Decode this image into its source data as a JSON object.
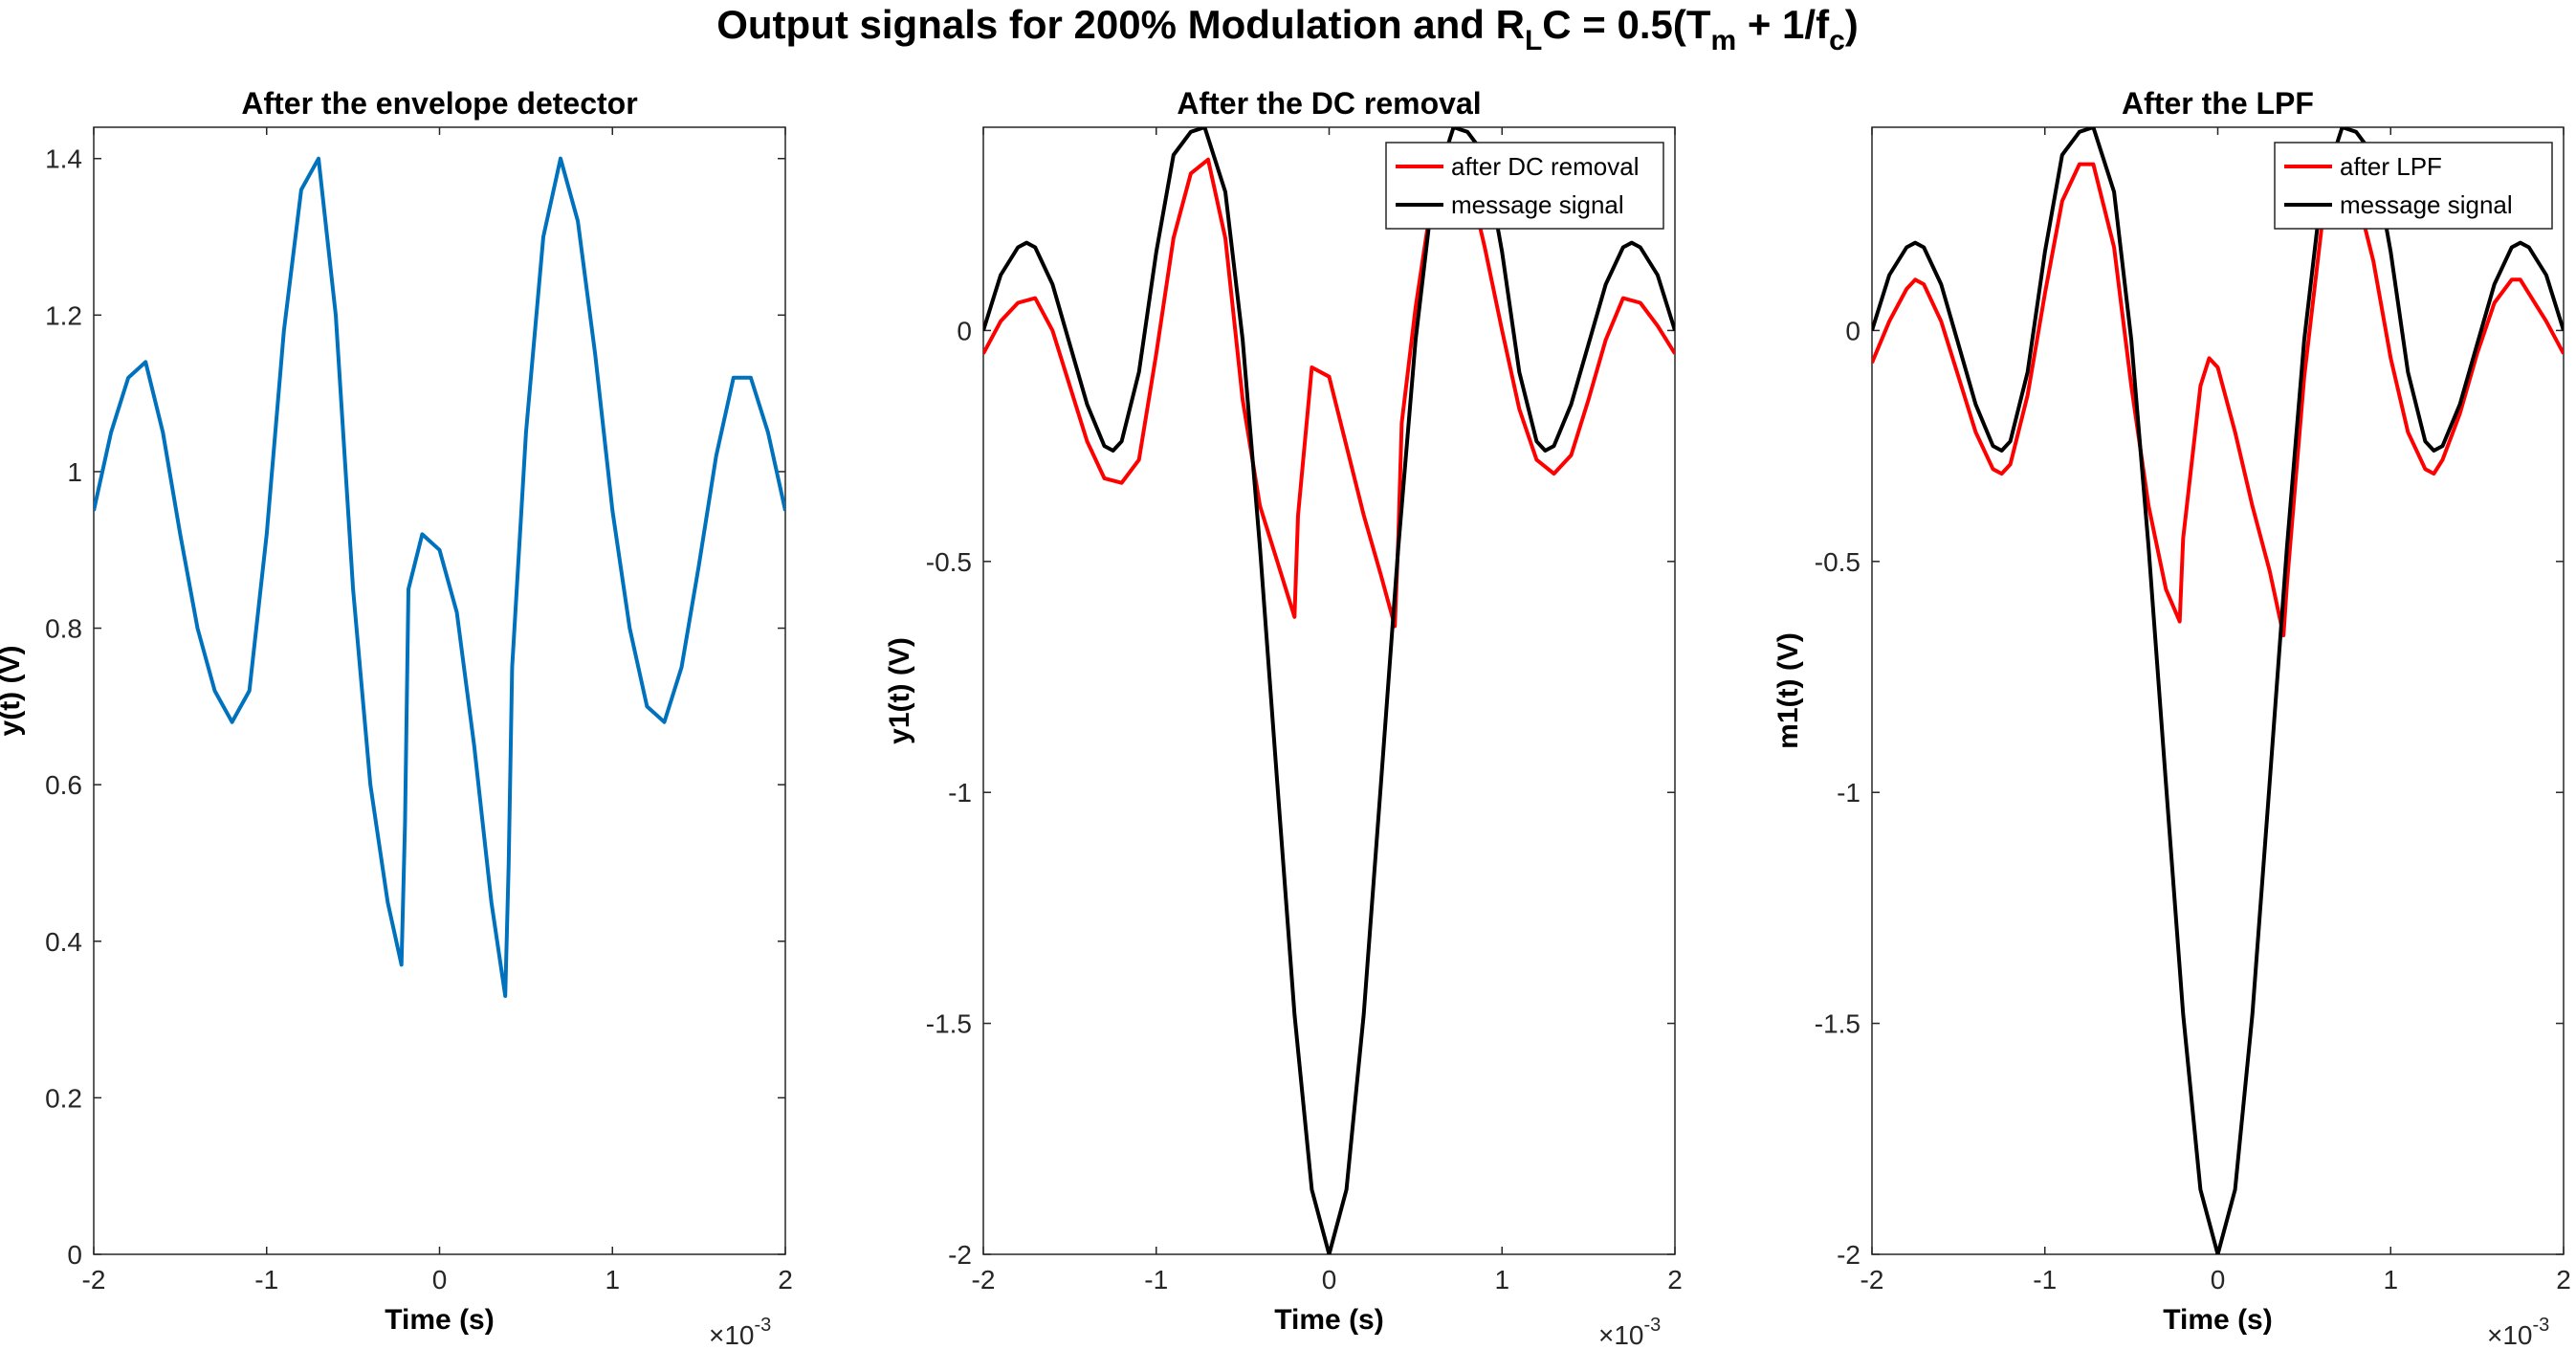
{
  "figure": {
    "title_main": "Output signals for 200% Modulation and R",
    "title_sub_L": "L",
    "title_mid": "C = 0.5(T",
    "title_sub_m": "m",
    "title_mid2": " + 1/f",
    "title_sub_c": "c",
    "title_end": ")"
  },
  "colors": {
    "blue": "#0072BD",
    "red": "#FF0000",
    "black": "#000000"
  },
  "chart_data": [
    {
      "type": "line",
      "title": "After the envelope detector",
      "xlabel": "Time (s)",
      "ylabel": "y(t) (V)",
      "x_exponent": "×10",
      "x_exponent_power": "-3",
      "xlim": [
        -2,
        2
      ],
      "ylim": [
        0,
        1.44
      ],
      "xticks": [
        -2,
        -1,
        0,
        1,
        2
      ],
      "xticklabels": [
        "-2",
        "-1",
        "0",
        "1",
        "2"
      ],
      "yticks": [
        0,
        0.2,
        0.4,
        0.6,
        0.8,
        1,
        1.2,
        1.4
      ],
      "yticklabels": [
        "0",
        "0.2",
        "0.4",
        "0.6",
        "0.8",
        "1",
        "1.2",
        "1.4"
      ],
      "legend": [],
      "series": [
        {
          "color": "blue",
          "x": [
            -2,
            -1.9,
            -1.8,
            -1.7,
            -1.6,
            -1.5,
            -1.4,
            -1.3,
            -1.2,
            -1.1,
            -1.0,
            -0.9,
            -0.8,
            -0.7,
            -0.6,
            -0.5,
            -0.4,
            -0.3,
            -0.22,
            -0.2,
            -0.18,
            -0.1,
            0,
            0.1,
            0.2,
            0.3,
            0.38,
            0.4,
            0.42,
            0.5,
            0.6,
            0.7,
            0.8,
            0.9,
            1.0,
            1.1,
            1.2,
            1.3,
            1.4,
            1.5,
            1.6,
            1.7,
            1.8,
            1.9,
            2.0
          ],
          "y": [
            0.95,
            1.05,
            1.12,
            1.14,
            1.05,
            0.92,
            0.8,
            0.72,
            0.68,
            0.72,
            0.92,
            1.18,
            1.36,
            1.4,
            1.2,
            0.85,
            0.6,
            0.45,
            0.37,
            0.55,
            0.85,
            0.92,
            0.9,
            0.82,
            0.65,
            0.45,
            0.33,
            0.5,
            0.75,
            1.05,
            1.3,
            1.4,
            1.32,
            1.15,
            0.95,
            0.8,
            0.7,
            0.68,
            0.75,
            0.88,
            1.02,
            1.12,
            1.12,
            1.05,
            0.95
          ]
        }
      ]
    },
    {
      "type": "line",
      "title": "After the DC removal",
      "xlabel": "Time (s)",
      "ylabel": "y1(t) (V)",
      "x_exponent": "×10",
      "x_exponent_power": "-3",
      "xlim": [
        -2,
        2
      ],
      "ylim": [
        -2,
        0.44
      ],
      "xticks": [
        -2,
        -1,
        0,
        1,
        2
      ],
      "xticklabels": [
        "-2",
        "-1",
        "0",
        "1",
        "2"
      ],
      "yticks": [
        -2,
        -1.5,
        -1,
        -0.5,
        0
      ],
      "yticklabels": [
        "-2",
        "-1.5",
        "-1",
        "-0.5",
        "0"
      ],
      "legend": [
        "after DC removal",
        "message signal"
      ],
      "series": [
        {
          "name": "after DC removal",
          "color": "red",
          "x": [
            -2,
            -1.9,
            -1.8,
            -1.7,
            -1.6,
            -1.5,
            -1.4,
            -1.3,
            -1.2,
            -1.1,
            -1.0,
            -0.9,
            -0.8,
            -0.7,
            -0.6,
            -0.5,
            -0.4,
            -0.3,
            -0.2,
            -0.18,
            -0.1,
            0,
            0.1,
            0.2,
            0.3,
            0.38,
            0.4,
            0.42,
            0.5,
            0.6,
            0.7,
            0.8,
            0.9,
            1.0,
            1.1,
            1.2,
            1.3,
            1.4,
            1.5,
            1.6,
            1.7,
            1.8,
            1.9,
            2.0
          ],
          "y": [
            -0.05,
            0.02,
            0.06,
            0.07,
            0.0,
            -0.12,
            -0.24,
            -0.32,
            -0.33,
            -0.28,
            -0.05,
            0.2,
            0.34,
            0.37,
            0.2,
            -0.15,
            -0.38,
            -0.5,
            -0.62,
            -0.4,
            -0.08,
            -0.1,
            -0.25,
            -0.4,
            -0.53,
            -0.64,
            -0.45,
            -0.2,
            0.05,
            0.3,
            0.38,
            0.34,
            0.18,
            0.0,
            -0.17,
            -0.28,
            -0.31,
            -0.27,
            -0.15,
            -0.02,
            0.07,
            0.06,
            0.01,
            -0.05
          ]
        },
        {
          "name": "message signal",
          "color": "black",
          "x": [
            -2,
            -1.9,
            -1.8,
            -1.75,
            -1.7,
            -1.6,
            -1.5,
            -1.4,
            -1.3,
            -1.25,
            -1.2,
            -1.1,
            -1.0,
            -0.9,
            -0.8,
            -0.72,
            -0.6,
            -0.5,
            -0.4,
            -0.3,
            -0.2,
            -0.1,
            0,
            0.1,
            0.2,
            0.3,
            0.4,
            0.5,
            0.6,
            0.72,
            0.8,
            0.9,
            1.0,
            1.1,
            1.2,
            1.25,
            1.3,
            1.4,
            1.5,
            1.6,
            1.7,
            1.75,
            1.8,
            1.9,
            2.0
          ],
          "y": [
            0,
            0.12,
            0.18,
            0.19,
            0.18,
            0.1,
            -0.03,
            -0.16,
            -0.25,
            -0.26,
            -0.24,
            -0.09,
            0.17,
            0.38,
            0.43,
            0.44,
            0.3,
            -0.02,
            -0.47,
            -0.98,
            -1.48,
            -1.86,
            -2,
            -1.86,
            -1.48,
            -0.98,
            -0.47,
            -0.02,
            0.3,
            0.44,
            0.43,
            0.38,
            0.17,
            -0.09,
            -0.24,
            -0.26,
            -0.25,
            -0.16,
            -0.03,
            0.1,
            0.18,
            0.19,
            0.18,
            0.12,
            0
          ]
        }
      ]
    },
    {
      "type": "line",
      "title": "After the LPF",
      "xlabel": "Time (s)",
      "ylabel": "m1(t) (V)",
      "x_exponent": "×10",
      "x_exponent_power": "-3",
      "xlim": [
        -2,
        2
      ],
      "ylim": [
        -2,
        0.44
      ],
      "xticks": [
        -2,
        -1,
        0,
        1,
        2
      ],
      "xticklabels": [
        "-2",
        "-1",
        "0",
        "1",
        "2"
      ],
      "yticks": [
        -2,
        -1.5,
        -1,
        -0.5,
        0
      ],
      "yticklabels": [
        "-2",
        "-1.5",
        "-1",
        "-0.5",
        "0"
      ],
      "legend": [
        "after LPF",
        "message signal"
      ],
      "series": [
        {
          "name": "after LPF",
          "color": "red",
          "x": [
            -2,
            -1.9,
            -1.8,
            -1.75,
            -1.7,
            -1.6,
            -1.5,
            -1.4,
            -1.3,
            -1.25,
            -1.2,
            -1.1,
            -1.0,
            -0.9,
            -0.8,
            -0.72,
            -0.6,
            -0.5,
            -0.4,
            -0.3,
            -0.22,
            -0.2,
            -0.1,
            -0.05,
            0,
            0.1,
            0.2,
            0.3,
            0.38,
            0.4,
            0.5,
            0.6,
            0.7,
            0.8,
            0.9,
            1.0,
            1.1,
            1.2,
            1.25,
            1.3,
            1.4,
            1.5,
            1.6,
            1.7,
            1.75,
            1.8,
            1.9,
            2.0
          ],
          "y": [
            -0.07,
            0.02,
            0.09,
            0.11,
            0.1,
            0.02,
            -0.1,
            -0.22,
            -0.3,
            -0.31,
            -0.29,
            -0.14,
            0.08,
            0.28,
            0.36,
            0.36,
            0.18,
            -0.12,
            -0.38,
            -0.56,
            -0.63,
            -0.45,
            -0.12,
            -0.06,
            -0.08,
            -0.22,
            -0.38,
            -0.52,
            -0.66,
            -0.55,
            -0.1,
            0.22,
            0.32,
            0.3,
            0.15,
            -0.06,
            -0.22,
            -0.3,
            -0.31,
            -0.28,
            -0.18,
            -0.05,
            0.06,
            0.11,
            0.11,
            0.08,
            0.02,
            -0.05
          ]
        },
        {
          "name": "message signal",
          "color": "black",
          "x": [
            -2,
            -1.9,
            -1.8,
            -1.75,
            -1.7,
            -1.6,
            -1.5,
            -1.4,
            -1.3,
            -1.25,
            -1.2,
            -1.1,
            -1.0,
            -0.9,
            -0.8,
            -0.72,
            -0.6,
            -0.5,
            -0.4,
            -0.3,
            -0.2,
            -0.1,
            0,
            0.1,
            0.2,
            0.3,
            0.4,
            0.5,
            0.6,
            0.72,
            0.8,
            0.9,
            1.0,
            1.1,
            1.2,
            1.25,
            1.3,
            1.4,
            1.5,
            1.6,
            1.7,
            1.75,
            1.8,
            1.9,
            2.0
          ],
          "y": [
            0,
            0.12,
            0.18,
            0.19,
            0.18,
            0.1,
            -0.03,
            -0.16,
            -0.25,
            -0.26,
            -0.24,
            -0.09,
            0.17,
            0.38,
            0.43,
            0.44,
            0.3,
            -0.02,
            -0.47,
            -0.98,
            -1.48,
            -1.86,
            -2,
            -1.86,
            -1.48,
            -0.98,
            -0.47,
            -0.02,
            0.3,
            0.44,
            0.43,
            0.38,
            0.17,
            -0.09,
            -0.24,
            -0.26,
            -0.25,
            -0.16,
            -0.03,
            0.1,
            0.18,
            0.19,
            0.18,
            0.12,
            0
          ]
        }
      ]
    }
  ]
}
